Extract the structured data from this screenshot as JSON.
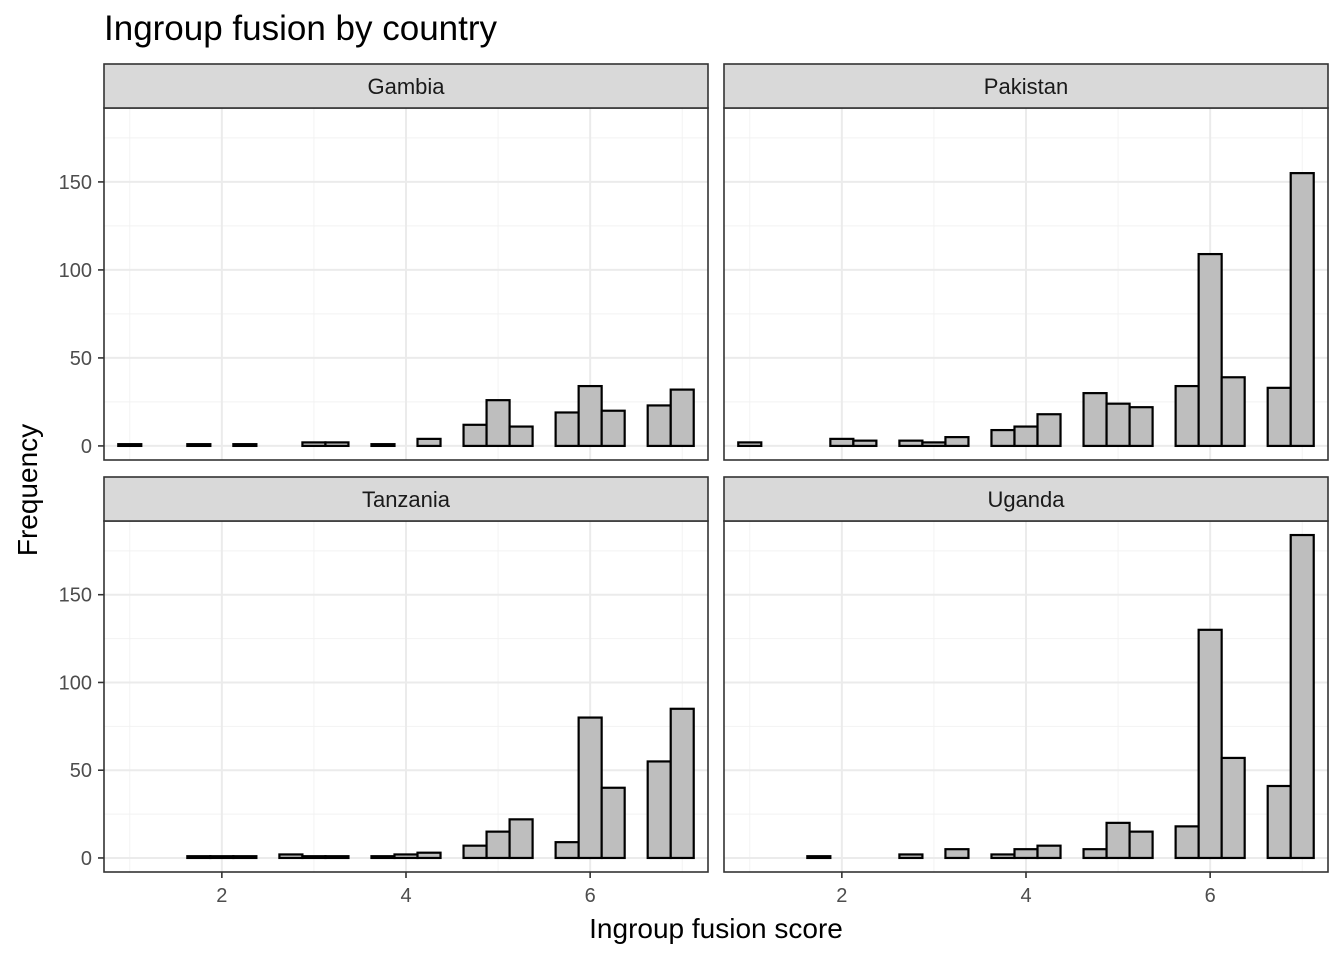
{
  "chart_data": {
    "type": "bar",
    "title": "Ingroup fusion by country",
    "xlabel": "Ingroup fusion score",
    "ylabel": "Frequency",
    "xlim": [
      0.72,
      7.28
    ],
    "ylim": [
      -8,
      192
    ],
    "x_ticks": [
      2,
      4,
      6
    ],
    "y_ticks": [
      0,
      50,
      100,
      150
    ],
    "bin_width": 0.25,
    "bin_centers": [
      1.0,
      1.25,
      1.5,
      1.75,
      2.0,
      2.25,
      2.5,
      2.75,
      3.0,
      3.25,
      3.5,
      3.75,
      4.0,
      4.25,
      4.5,
      4.75,
      5.0,
      5.25,
      5.5,
      5.75,
      6.0,
      6.25,
      6.5,
      6.75,
      7.0
    ],
    "grid": true,
    "panels": [
      {
        "name": "Gambia",
        "values": [
          1,
          0,
          0,
          1,
          0,
          1,
          0,
          0,
          2,
          2,
          0,
          1,
          0,
          4,
          0,
          12,
          26,
          11,
          0,
          19,
          34,
          20,
          0,
          23,
          32
        ]
      },
      {
        "name": "Pakistan",
        "values": [
          2,
          0,
          0,
          0,
          4,
          3,
          0,
          3,
          2,
          5,
          0,
          9,
          11,
          18,
          0,
          30,
          24,
          22,
          0,
          34,
          109,
          39,
          0,
          33,
          155
        ]
      },
      {
        "name": "Tanzania",
        "values": [
          0,
          0,
          0,
          1,
          1,
          1,
          0,
          2,
          1,
          1,
          0,
          1,
          2,
          3,
          0,
          7,
          15,
          22,
          0,
          9,
          80,
          40,
          0,
          55,
          85
        ]
      },
      {
        "name": "Uganda",
        "values": [
          0,
          0,
          0,
          1,
          0,
          0,
          0,
          2,
          0,
          5,
          0,
          2,
          5,
          7,
          0,
          5,
          20,
          15,
          0,
          18,
          130,
          57,
          0,
          41,
          184
        ]
      }
    ]
  }
}
